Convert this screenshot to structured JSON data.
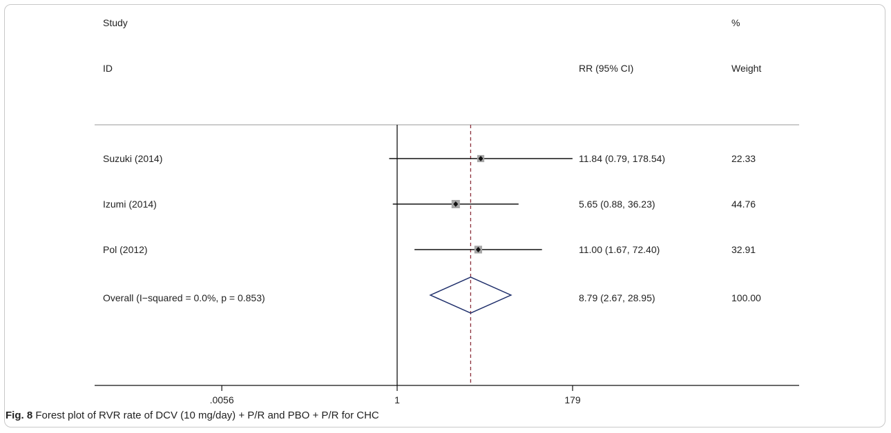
{
  "chart_data": {
    "type": "forest",
    "headers": {
      "study_line1": "Study",
      "study_line2": "ID",
      "effect": "RR (95% CI)",
      "weight_line1": "%",
      "weight_line2": "Weight"
    },
    "x_scale": "log",
    "xlim": [
      0.0056,
      179
    ],
    "null_value": 1,
    "overall_line": 8.79,
    "ticks": [
      {
        "value": 0.0056,
        "label": ".0056"
      },
      {
        "value": 1,
        "label": "1"
      },
      {
        "value": 179,
        "label": "179"
      }
    ],
    "studies": [
      {
        "label": "Suzuki (2014)",
        "rr": 11.84,
        "lo": 0.79,
        "hi": 178.54,
        "effect_text": "11.84 (0.79, 178.54)",
        "weight": 22.33,
        "weight_text": "22.33"
      },
      {
        "label": "Izumi (2014)",
        "rr": 5.65,
        "lo": 0.88,
        "hi": 36.23,
        "effect_text": "5.65 (0.88, 36.23)",
        "weight": 44.76,
        "weight_text": "44.76"
      },
      {
        "label": "Pol (2012)",
        "rr": 11.0,
        "lo": 1.67,
        "hi": 72.4,
        "effect_text": "11.00 (1.67, 72.40)",
        "weight": 32.91,
        "weight_text": "32.91"
      }
    ],
    "overall": {
      "label": "Overall  (I−squared = 0.0%, p = 0.853)",
      "rr": 8.79,
      "lo": 2.67,
      "hi": 28.95,
      "effect_text": "8.79 (2.67, 28.95)",
      "weight_text": "100.00"
    }
  },
  "caption": {
    "fig_label": "Fig. 8",
    "text": "Forest plot of RVR rate of DCV (10 mg/day) + P/R and PBO + P/R for CHC"
  },
  "colors": {
    "line": "#111111",
    "dashed": "#8b2f3a",
    "box_fill": "#a6a6a6",
    "diamond": "#1f2f6b",
    "rule": "#999999"
  }
}
